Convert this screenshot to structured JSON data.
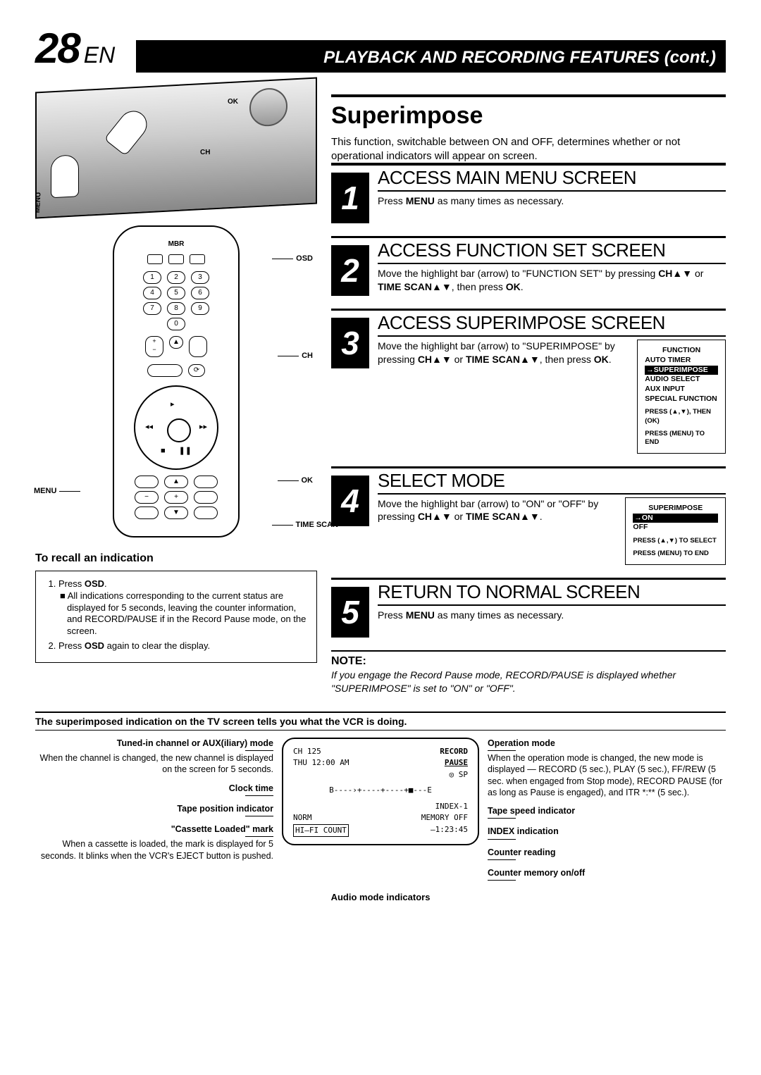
{
  "page_number": "28",
  "lang": "EN",
  "header_title": "PLAYBACK AND RECORDING FEATURES (cont.)",
  "section_title": "Superimpose",
  "intro": "This function, switchable between ON and OFF, determines whether or not operational indicators will appear on screen.",
  "vcr_labels": {
    "ok": "OK",
    "ch": "CH",
    "menu": "MENU"
  },
  "remote": {
    "brand": "MBR",
    "labels": {
      "osd": "OSD",
      "ch": "CH",
      "ok": "OK",
      "menu": "MENU",
      "time_scan": "TIME SCAN"
    },
    "digits": [
      "1",
      "2",
      "3",
      "4",
      "5",
      "6",
      "7",
      "8",
      "9",
      "0"
    ]
  },
  "recall": {
    "title": "To recall an indication",
    "items": [
      "Press OSD.",
      "All indications corresponding to the current status are displayed for 5 seconds, leaving the counter information, and RECORD/PAUSE if in the Record Pause mode, on the screen.",
      "Press OSD again to clear the display."
    ]
  },
  "steps": [
    {
      "num": "1",
      "title": "ACCESS MAIN MENU SCREEN",
      "text": "Press MENU as many times as necessary."
    },
    {
      "num": "2",
      "title": "ACCESS FUNCTION SET SCREEN",
      "text": "Move the highlight bar (arrow) to \"FUNCTION SET\" by pressing CH▲▼ or TIME SCAN▲▼, then press OK."
    },
    {
      "num": "3",
      "title": "ACCESS SUPERIMPOSE SCREEN",
      "text": "Move the highlight bar (arrow) to \"SUPERIMPOSE\" by pressing CH▲▼ or TIME SCAN▲▼, then press OK.",
      "osd": {
        "title": "FUNCTION",
        "items": [
          "AUTO TIMER",
          "→SUPERIMPOSE",
          "AUDIO SELECT",
          "AUX INPUT",
          "SPECIAL FUNCTION"
        ],
        "highlight_idx": 1,
        "foot1": "PRESS (▲,▼), THEN (OK)",
        "foot2": "PRESS (MENU) TO END"
      }
    },
    {
      "num": "4",
      "title": "SELECT MODE",
      "text": "Move the highlight bar (arrow) to \"ON\" or \"OFF\" by pressing CH▲▼ or TIME SCAN▲▼.",
      "osd": {
        "title": "SUPERIMPOSE",
        "items": [
          "→ON",
          "OFF"
        ],
        "highlight_idx": 0,
        "foot1": "PRESS (▲,▼) TO SELECT",
        "foot2": "PRESS (MENU) TO END"
      }
    },
    {
      "num": "5",
      "title": "RETURN TO NORMAL SCREEN",
      "text": "Press MENU as many times as necessary."
    }
  ],
  "note": {
    "title": "NOTE:",
    "body": "If you engage the Record Pause mode, RECORD/PAUSE is displayed whether \"SUPERIMPOSE\" is set to \"ON\" or \"OFF\"."
  },
  "bottom": {
    "heading": "The superimposed indication on the TV screen tells you what the VCR is doing.",
    "left": [
      {
        "label": "Tuned-in channel or AUX(iliary) mode",
        "text": "When the channel is changed, the new channel is displayed on the screen for 5 seconds."
      },
      {
        "label": "Clock time",
        "text": ""
      },
      {
        "label": "Tape position indicator",
        "text": ""
      },
      {
        "label": "\"Cassette Loaded\" mark",
        "text": "When a cassette is loaded, the mark is displayed for 5 seconds. It blinks when the VCR's EJECT button is pushed."
      }
    ],
    "right": [
      {
        "label": "Operation mode",
        "text": "When the operation mode is changed, the new mode is displayed — RECORD (5 sec.), PLAY (5 sec.), FF/REW (5 sec. when engaged from Stop mode), RECORD PAUSE (for as long as Pause is engaged), and ITR *:** (5 sec.)."
      },
      {
        "label": "Tape speed indicator",
        "text": ""
      },
      {
        "label": "INDEX indication",
        "text": ""
      },
      {
        "label": "Counter reading",
        "text": ""
      },
      {
        "label": "Counter memory on/off",
        "text": ""
      }
    ],
    "below": "Audio mode indicators",
    "tv": {
      "l1a": "CH   125",
      "l1b": "RECORD",
      "l2a": "THU  12:00 AM",
      "l2b": "PAUSE",
      "l3b": "◎ SP",
      "l4": "B----›+----+----+■---E",
      "l5b": "INDEX-1",
      "l6a": "NORM",
      "l6b": "MEMORY OFF",
      "l7a": "HI–FI   COUNT",
      "l7b": "–1:23:45"
    }
  },
  "colors": {
    "fg": "#000000",
    "bg": "#ffffff"
  }
}
